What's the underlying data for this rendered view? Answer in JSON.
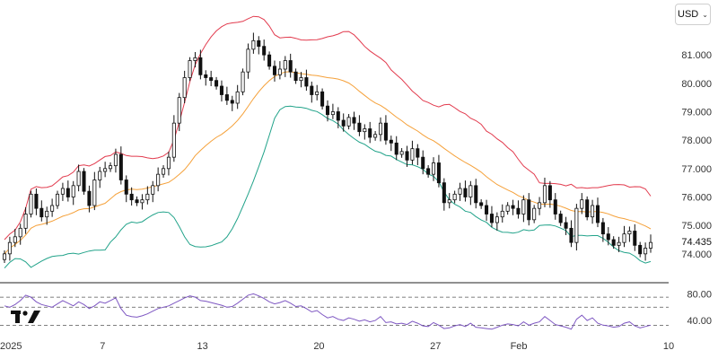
{
  "currency_selector": {
    "label": "USD",
    "chevron": "chevron-down-icon"
  },
  "logo": {
    "name": "tradingview-logo"
  },
  "chart_data": [
    {
      "type": "candlestick",
      "indicator": "bollinger-bands",
      "ylim": [
        73.3,
        82.3
      ],
      "y_ticks": [
        {
          "value": 81.0,
          "label": "81.000"
        },
        {
          "value": 80.0,
          "label": "80.000"
        },
        {
          "value": 79.0,
          "label": "79.000"
        },
        {
          "value": 78.0,
          "label": "78.000"
        },
        {
          "value": 77.0,
          "label": "77.000"
        },
        {
          "value": 76.0,
          "label": "76.000"
        },
        {
          "value": 75.0,
          "label": "75.000"
        },
        {
          "value": 74.0,
          "label": "74.000"
        }
      ],
      "x_ticks": [
        {
          "date": "2025-01-01",
          "label": "2025"
        },
        {
          "date": "2025-01-07",
          "label": "7"
        },
        {
          "date": "2025-01-13",
          "label": "13"
        },
        {
          "date": "2025-01-20",
          "label": "20"
        },
        {
          "date": "2025-01-27",
          "label": "27"
        },
        {
          "date": "2025-02-01",
          "label": "Feb"
        },
        {
          "date": "2025-02-10",
          "label": "10"
        }
      ],
      "last_price": {
        "value": 74.435,
        "label": "74.435"
      },
      "close_series": [
        74.0,
        74.4,
        74.6,
        74.9,
        75.4,
        76.1,
        75.6,
        75.3,
        75.5,
        75.7,
        76.1,
        76.3,
        76.0,
        76.4,
        76.9,
        76.2,
        75.7,
        76.6,
        76.9,
        77.0,
        77.1,
        77.5,
        76.6,
        76.1,
        75.9,
        75.8,
        75.9,
        76.1,
        76.4,
        76.8,
        77.0,
        77.4,
        78.6,
        79.5,
        80.2,
        80.8,
        80.9,
        80.3,
        80.2,
        80.1,
        79.9,
        79.6,
        79.4,
        79.3,
        79.7,
        80.4,
        81.2,
        81.5,
        81.3,
        81.0,
        80.6,
        80.3,
        80.5,
        80.8,
        80.4,
        80.1,
        80.2,
        79.9,
        79.6,
        79.7,
        79.2,
        78.9,
        79.0,
        78.7,
        78.5,
        78.8,
        78.6,
        78.3,
        78.4,
        78.1,
        78.2,
        78.6,
        78.0,
        77.9,
        77.5,
        77.6,
        77.3,
        77.7,
        77.4,
        77.0,
        76.8,
        77.2,
        76.5,
        75.8,
        75.9,
        76.1,
        76.3,
        76.0,
        76.4,
        75.8,
        75.7,
        75.4,
        75.1,
        75.3,
        75.5,
        75.7,
        75.6,
        75.4,
        75.9,
        75.2,
        75.6,
        75.8,
        76.4,
        75.9,
        75.4,
        75.1,
        74.9,
        74.4,
        75.6,
        75.9,
        75.3,
        75.7,
        75.1,
        74.7,
        74.5,
        74.3,
        74.4,
        74.7,
        74.8,
        74.3,
        74.0,
        74.2,
        74.4
      ]
    },
    {
      "type": "line",
      "indicator": "oscillator",
      "ylim": [
        20,
        90
      ],
      "y_ticks": [
        {
          "value": 80,
          "label": "80.00"
        },
        {
          "value": 40,
          "label": "40.00"
        }
      ],
      "bands": [
        75,
        60,
        33
      ],
      "values": [
        62,
        60,
        64,
        70,
        78,
        75,
        68,
        64,
        62,
        60,
        65,
        70,
        66,
        62,
        68,
        64,
        58,
        62,
        68,
        66,
        70,
        74,
        58,
        48,
        46,
        45,
        47,
        50,
        54,
        58,
        60,
        62,
        66,
        70,
        74,
        77,
        75,
        70,
        69,
        67,
        65,
        63,
        60,
        61,
        66,
        72,
        78,
        80,
        77,
        73,
        68,
        65,
        67,
        70,
        66,
        61,
        62,
        58,
        53,
        55,
        49,
        44,
        46,
        42,
        40,
        44,
        42,
        39,
        41,
        38,
        40,
        46,
        37,
        38,
        35,
        36,
        34,
        39,
        36,
        32,
        31,
        37,
        33,
        28,
        29,
        32,
        34,
        31,
        36,
        30,
        29,
        28,
        27,
        30,
        33,
        35,
        34,
        32,
        38,
        33,
        36,
        38,
        46,
        40,
        34,
        32,
        30,
        27,
        42,
        48,
        40,
        44,
        36,
        33,
        32,
        30,
        31,
        36,
        38,
        32,
        29,
        31,
        33
      ]
    }
  ],
  "colors": {
    "up": "#111111",
    "down": "#111111",
    "upper_band": "#e23b4e",
    "middle_band": "#f5a13a",
    "lower_band": "#22a38a",
    "oscillator": "#7e57c2",
    "divider": "#222222",
    "dashed": "#555555"
  }
}
